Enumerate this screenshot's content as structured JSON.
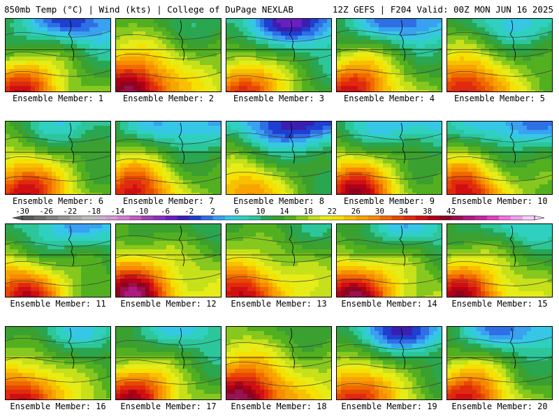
{
  "header": {
    "left": "850mb Temp (°C) | Wind (kts) | College of DuPage NEXLAB",
    "right": "12Z GEFS | F204 Valid: 00Z MON JUN 16 2025"
  },
  "panel_label_prefix": "Ensemble Member: ",
  "members": [
    {
      "id": 1,
      "base": 14,
      "cold": 0.85,
      "hot": 0.9
    },
    {
      "id": 2,
      "base": 19,
      "cold": 0.3,
      "hot": 1.0
    },
    {
      "id": 3,
      "base": 13,
      "cold": 1.0,
      "hot": 0.9
    },
    {
      "id": 4,
      "base": 15,
      "cold": 0.9,
      "hot": 0.9
    },
    {
      "id": 5,
      "base": 16,
      "cold": 0.5,
      "hot": 0.9
    },
    {
      "id": 6,
      "base": 16,
      "cold": 0.4,
      "hot": 0.9
    },
    {
      "id": 7,
      "base": 15,
      "cold": 0.7,
      "hot": 0.9
    },
    {
      "id": 8,
      "base": 13,
      "cold": 1.0,
      "hot": 0.6
    },
    {
      "id": 9,
      "base": 15,
      "cold": 0.6,
      "hot": 1.0
    },
    {
      "id": 10,
      "base": 15,
      "cold": 0.8,
      "hot": 0.9
    },
    {
      "id": 11,
      "base": 15,
      "cold": 0.6,
      "hot": 0.9
    },
    {
      "id": 12,
      "base": 19,
      "cold": 0.3,
      "hot": 1.0
    },
    {
      "id": 13,
      "base": 18,
      "cold": 0.2,
      "hot": 0.8
    },
    {
      "id": 14,
      "base": 17,
      "cold": 0.6,
      "hot": 1.0
    },
    {
      "id": 15,
      "base": 17,
      "cold": 0.5,
      "hot": 0.9
    },
    {
      "id": 16,
      "base": 16,
      "cold": 0.4,
      "hot": 0.9
    },
    {
      "id": 17,
      "base": 15,
      "cold": 0.4,
      "hot": 1.0
    },
    {
      "id": 18,
      "base": 20,
      "cold": 0.2,
      "hot": 1.0
    },
    {
      "id": 19,
      "base": 15,
      "cold": 1.0,
      "hot": 0.9
    },
    {
      "id": 20,
      "base": 15,
      "cold": 0.8,
      "hot": 0.9
    }
  ],
  "color_scale": {
    "ticks": [
      "-30",
      "-26",
      "-22",
      "-18",
      "-14",
      "-10",
      "-6",
      "-2",
      "2",
      "6",
      "10",
      "14",
      "18",
      "22",
      "26",
      "30",
      "34",
      "38",
      "42"
    ],
    "min": -30,
    "max": 44,
    "step": 2,
    "colors": [
      "#5a5a5a",
      "#6e6e6e",
      "#828282",
      "#969696",
      "#aaaaaa",
      "#bebebe",
      "#c9b3c9",
      "#d39bd3",
      "#d37fd3",
      "#c25ec2",
      "#a040b4",
      "#8a2fbf",
      "#6a1fc0",
      "#3b1fb0",
      "#1f3fd0",
      "#2f6fe6",
      "#3aa0f0",
      "#36c6e6",
      "#2fd0c0",
      "#2cc69a",
      "#2aa650",
      "#3aa030",
      "#52b020",
      "#86c81e",
      "#c6e01a",
      "#e6ec18",
      "#f5e000",
      "#f7c000",
      "#f7a400",
      "#f78c00",
      "#f06a00",
      "#e84800",
      "#e02a10",
      "#d01010",
      "#b00018",
      "#8e0420",
      "#9a1050",
      "#b01a80",
      "#c824a0",
      "#e040c0",
      "#f070e0",
      "#f0a0f0",
      "#f8d0f8"
    ]
  }
}
